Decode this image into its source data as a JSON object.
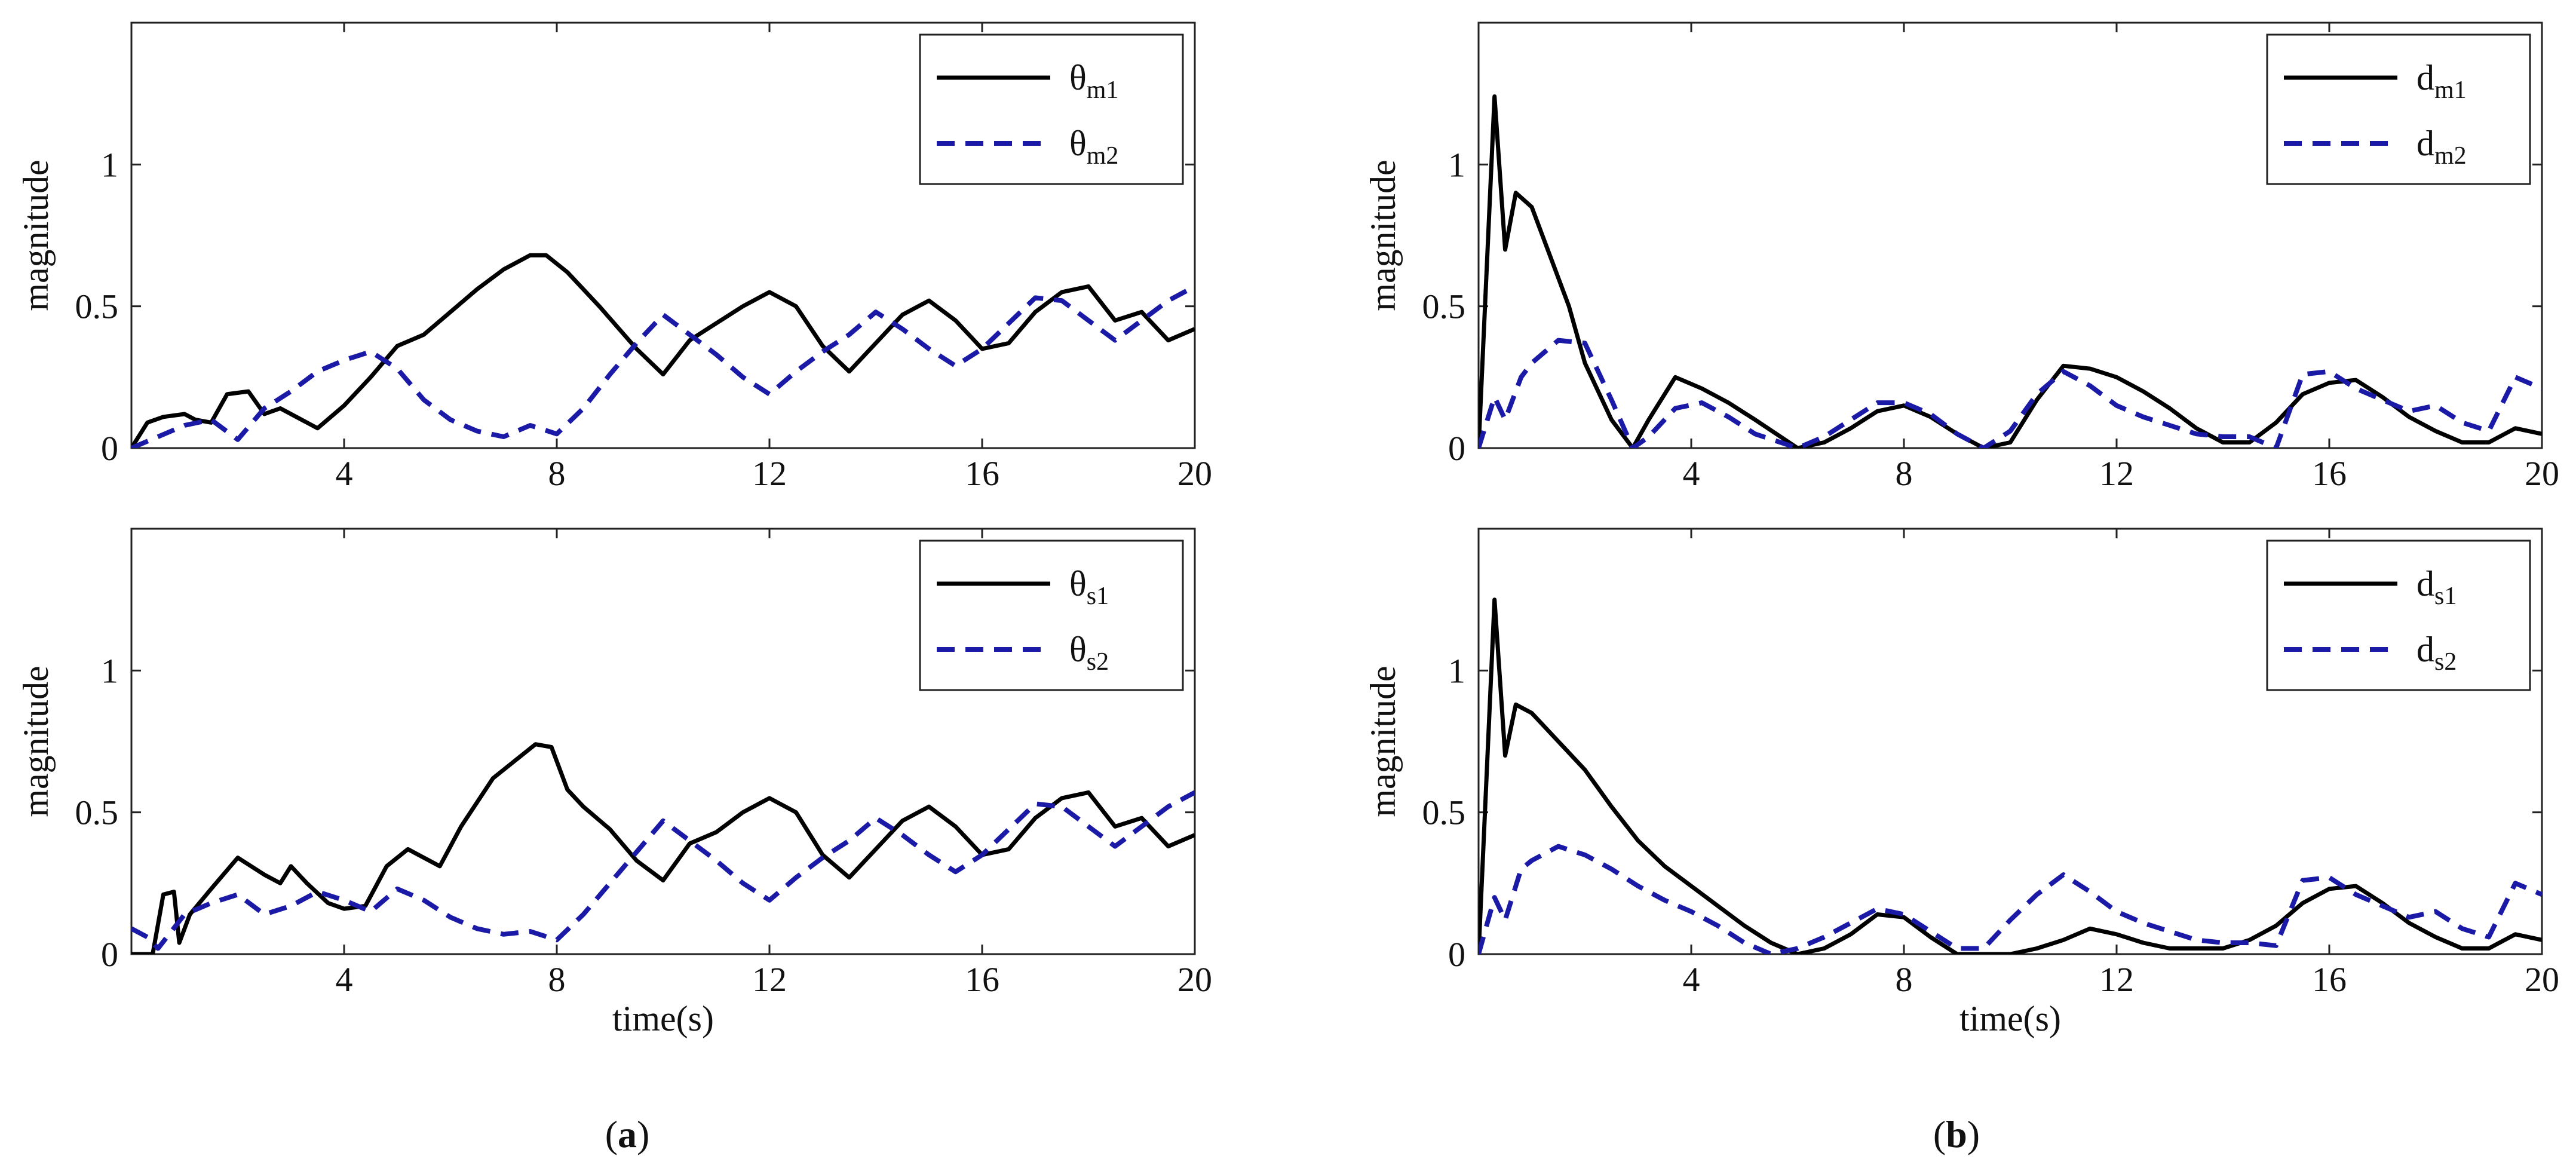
{
  "colors": {
    "black_series": "#000000",
    "blue_series": "#1a1aa6",
    "axes": "#222222",
    "background": "#ffffff"
  },
  "panel_captions": [
    {
      "open": "(",
      "letter": "a",
      "close": ")"
    },
    {
      "open": "(",
      "letter": "b",
      "close": ")"
    }
  ],
  "chart_data": [
    {
      "type": "line",
      "panel": "a-top",
      "title": "",
      "xlabel": "",
      "ylabel": "magnitude",
      "xlim": [
        0,
        20
      ],
      "ylim": [
        0,
        1.5
      ],
      "xticks": [
        "4",
        "8",
        "12",
        "16",
        "20"
      ],
      "yticks": [
        "0",
        "0.5",
        "1"
      ],
      "legend_position": "top-right",
      "series": [
        {
          "name": "θm1",
          "base": "θ",
          "sub": "m1",
          "style": "solid",
          "color": "#000000",
          "x": [
            0,
            0.3,
            0.6,
            1,
            1.2,
            1.5,
            1.8,
            2.2,
            2.5,
            2.8,
            3.2,
            3.5,
            4,
            4.5,
            5,
            5.5,
            6,
            6.5,
            7,
            7.5,
            7.8,
            8.2,
            8.8,
            9.5,
            10,
            10.5,
            11,
            11.5,
            12,
            12.5,
            13,
            13.5,
            14,
            14.5,
            15,
            15.5,
            16,
            16.5,
            17,
            17.5,
            18,
            18.5,
            19,
            19.5,
            20
          ],
          "y": [
            0,
            0.09,
            0.11,
            0.12,
            0.1,
            0.09,
            0.19,
            0.2,
            0.12,
            0.14,
            0.1,
            0.07,
            0.15,
            0.25,
            0.36,
            0.4,
            0.48,
            0.56,
            0.63,
            0.68,
            0.68,
            0.62,
            0.5,
            0.35,
            0.26,
            0.38,
            0.44,
            0.5,
            0.55,
            0.5,
            0.36,
            0.27,
            0.37,
            0.47,
            0.52,
            0.45,
            0.35,
            0.37,
            0.48,
            0.55,
            0.57,
            0.45,
            0.48,
            0.38,
            0.42
          ]
        },
        {
          "name": "θm2",
          "base": "θ",
          "sub": "m2",
          "style": "dashed",
          "color": "#1a1aa6",
          "x": [
            0,
            0.5,
            1,
            1.5,
            2,
            2.5,
            3,
            3.5,
            4,
            4.5,
            5,
            5.5,
            6,
            6.5,
            7,
            7.5,
            8,
            8.5,
            9,
            9.5,
            10,
            10.5,
            11,
            11.5,
            12,
            12.5,
            13,
            13.5,
            14,
            14.5,
            15,
            15.5,
            16,
            16.5,
            17,
            17.5,
            18,
            18.5,
            19,
            19.5,
            20
          ],
          "y": [
            0,
            0.04,
            0.08,
            0.1,
            0.03,
            0.14,
            0.2,
            0.27,
            0.31,
            0.34,
            0.28,
            0.17,
            0.1,
            0.06,
            0.04,
            0.08,
            0.05,
            0.14,
            0.26,
            0.37,
            0.47,
            0.4,
            0.33,
            0.25,
            0.19,
            0.27,
            0.34,
            0.4,
            0.48,
            0.42,
            0.35,
            0.29,
            0.35,
            0.44,
            0.53,
            0.52,
            0.45,
            0.38,
            0.45,
            0.52,
            0.57
          ]
        }
      ]
    },
    {
      "type": "line",
      "panel": "a-bottom",
      "title": "",
      "xlabel": "time(s)",
      "ylabel": "magnitude",
      "xlim": [
        0,
        20
      ],
      "ylim": [
        0,
        1.5
      ],
      "xticks": [
        "4",
        "8",
        "12",
        "16",
        "20"
      ],
      "yticks": [
        "0",
        "0.5",
        "1"
      ],
      "legend_position": "top-right",
      "series": [
        {
          "name": "θs1",
          "base": "θ",
          "sub": "s1",
          "style": "solid",
          "color": "#000000",
          "x": [
            0,
            0.4,
            0.6,
            0.8,
            0.9,
            1.1,
            1.5,
            2,
            2.5,
            2.8,
            3,
            3.3,
            3.7,
            4,
            4.4,
            4.8,
            5.2,
            5.8,
            6.2,
            6.8,
            7.2,
            7.6,
            7.9,
            8.2,
            8.5,
            9,
            9.5,
            10,
            10.5,
            11,
            11.5,
            12,
            12.5,
            13,
            13.5,
            14,
            14.5,
            15,
            15.5,
            16,
            16.5,
            17,
            17.5,
            18,
            18.5,
            19,
            19.5,
            20
          ],
          "y": [
            0,
            0,
            0.21,
            0.22,
            0.04,
            0.14,
            0.23,
            0.34,
            0.28,
            0.25,
            0.31,
            0.25,
            0.18,
            0.16,
            0.17,
            0.31,
            0.37,
            0.31,
            0.45,
            0.62,
            0.68,
            0.74,
            0.73,
            0.58,
            0.52,
            0.44,
            0.33,
            0.26,
            0.39,
            0.43,
            0.5,
            0.55,
            0.5,
            0.35,
            0.27,
            0.37,
            0.47,
            0.52,
            0.45,
            0.35,
            0.37,
            0.48,
            0.55,
            0.57,
            0.45,
            0.48,
            0.38,
            0.42
          ]
        },
        {
          "name": "θs2",
          "base": "θ",
          "sub": "s2",
          "style": "dashed",
          "color": "#1a1aa6",
          "x": [
            0,
            0.3,
            0.5,
            1,
            1.5,
            2,
            2.5,
            3,
            3.5,
            4,
            4.5,
            5,
            5.5,
            6,
            6.5,
            7,
            7.5,
            8,
            8.5,
            9,
            9.5,
            10,
            10.5,
            11,
            11.5,
            12,
            12.5,
            13,
            13.5,
            14,
            14.5,
            15,
            15.5,
            16,
            16.5,
            17,
            17.5,
            18,
            18.5,
            19,
            19.5,
            20
          ],
          "y": [
            0.09,
            0.06,
            0.02,
            0.14,
            0.18,
            0.21,
            0.14,
            0.17,
            0.22,
            0.19,
            0.15,
            0.23,
            0.19,
            0.13,
            0.09,
            0.07,
            0.08,
            0.05,
            0.14,
            0.25,
            0.36,
            0.47,
            0.4,
            0.33,
            0.25,
            0.19,
            0.27,
            0.34,
            0.4,
            0.48,
            0.42,
            0.35,
            0.29,
            0.35,
            0.44,
            0.53,
            0.52,
            0.45,
            0.38,
            0.45,
            0.52,
            0.57
          ]
        }
      ]
    },
    {
      "type": "line",
      "panel": "b-top",
      "title": "",
      "xlabel": "",
      "ylabel": "magnitude",
      "xlim": [
        0,
        20
      ],
      "ylim": [
        0,
        1.5
      ],
      "xticks": [
        "4",
        "8",
        "12",
        "16",
        "20"
      ],
      "yticks": [
        "0",
        "0.5",
        "1"
      ],
      "legend_position": "top-right",
      "series": [
        {
          "name": "dm1",
          "base": "d",
          "sub": "m1",
          "style": "solid",
          "color": "#000000",
          "x": [
            0,
            0.3,
            0.5,
            0.7,
            1,
            1.3,
            1.7,
            2,
            2.5,
            2.9,
            3.2,
            3.7,
            4.2,
            4.7,
            5.2,
            6,
            6.5,
            7,
            7.5,
            8,
            8.5,
            9,
            9.5,
            10,
            10.5,
            11,
            11.5,
            12,
            12.5,
            13,
            13.5,
            14,
            14.5,
            15,
            15.5,
            16,
            16.5,
            17,
            17.5,
            18,
            18.5,
            19,
            19.5,
            20
          ],
          "y": [
            0,
            1.24,
            0.7,
            0.9,
            0.85,
            0.7,
            0.5,
            0.3,
            0.1,
            0,
            0.1,
            0.25,
            0.21,
            0.16,
            0.1,
            0,
            0.02,
            0.07,
            0.13,
            0.15,
            0.11,
            0.05,
            0,
            0.02,
            0.17,
            0.29,
            0.28,
            0.25,
            0.2,
            0.14,
            0.07,
            0.02,
            0.02,
            0.09,
            0.19,
            0.23,
            0.24,
            0.18,
            0.11,
            0.06,
            0.02,
            0.02,
            0.07,
            0.05
          ]
        },
        {
          "name": "dm2",
          "base": "d",
          "sub": "m2",
          "style": "dashed",
          "color": "#1a1aa6",
          "x": [
            0,
            0.3,
            0.5,
            0.8,
            1,
            1.5,
            2,
            2.5,
            2.9,
            3.2,
            3.7,
            4.2,
            4.7,
            5.2,
            6,
            6.5,
            7,
            7.5,
            8,
            8.5,
            9,
            9.5,
            10,
            10.5,
            11,
            11.5,
            12,
            12.5,
            13,
            13.5,
            14,
            14.5,
            15,
            15.5,
            16,
            16.5,
            17,
            17.5,
            18,
            18.5,
            19,
            19.5,
            20
          ],
          "y": [
            0,
            0.18,
            0.1,
            0.25,
            0.3,
            0.38,
            0.37,
            0.17,
            0,
            0.04,
            0.14,
            0.16,
            0.11,
            0.05,
            0,
            0.04,
            0.1,
            0.16,
            0.16,
            0.12,
            0.05,
            0,
            0.06,
            0.19,
            0.27,
            0.22,
            0.15,
            0.11,
            0.08,
            0.05,
            0.04,
            0.04,
            0,
            0.26,
            0.27,
            0.21,
            0.17,
            0.13,
            0.15,
            0.09,
            0.06,
            0.25,
            0.21
          ]
        }
      ]
    },
    {
      "type": "line",
      "panel": "b-bottom",
      "title": "",
      "xlabel": "time(s)",
      "ylabel": "magnitude",
      "xlim": [
        0,
        20
      ],
      "ylim": [
        0,
        1.5
      ],
      "xticks": [
        "4",
        "8",
        "12",
        "16",
        "20"
      ],
      "yticks": [
        "0",
        "0.5",
        "1"
      ],
      "legend_position": "top-right",
      "series": [
        {
          "name": "ds1",
          "base": "d",
          "sub": "s1",
          "style": "solid",
          "color": "#000000",
          "x": [
            0,
            0.3,
            0.5,
            0.7,
            1,
            1.5,
            2,
            2.5,
            3,
            3.5,
            4,
            4.5,
            5,
            5.5,
            6,
            6.5,
            7,
            7.5,
            8,
            8.5,
            9,
            9.5,
            10,
            10.5,
            11,
            11.5,
            12,
            12.5,
            13,
            13.5,
            14,
            14.5,
            15,
            15.5,
            16,
            16.5,
            17,
            17.5,
            18,
            18.5,
            19,
            19.5,
            20
          ],
          "y": [
            0,
            1.25,
            0.7,
            0.88,
            0.85,
            0.75,
            0.65,
            0.52,
            0.4,
            0.31,
            0.24,
            0.17,
            0.1,
            0.04,
            0,
            0.02,
            0.07,
            0.14,
            0.13,
            0.06,
            0,
            0,
            0,
            0.02,
            0.05,
            0.09,
            0.07,
            0.04,
            0.02,
            0.02,
            0.02,
            0.05,
            0.1,
            0.18,
            0.23,
            0.24,
            0.18,
            0.11,
            0.06,
            0.02,
            0.02,
            0.07,
            0.05
          ]
        },
        {
          "name": "ds2",
          "base": "d",
          "sub": "s2",
          "style": "dashed",
          "color": "#1a1aa6",
          "x": [
            0,
            0.3,
            0.5,
            0.8,
            1,
            1.5,
            2,
            2.5,
            3,
            3.5,
            4,
            4.5,
            5,
            5.5,
            6,
            6.5,
            7,
            7.5,
            8,
            8.5,
            9,
            9.5,
            10,
            10.5,
            11,
            11.5,
            12,
            12.5,
            13,
            13.5,
            14,
            14.5,
            15,
            15.5,
            16,
            16.5,
            17,
            17.5,
            18,
            18.5,
            19,
            19.5,
            20
          ],
          "y": [
            0,
            0.2,
            0.12,
            0.3,
            0.33,
            0.38,
            0.35,
            0.3,
            0.24,
            0.19,
            0.15,
            0.1,
            0.04,
            0,
            0.02,
            0.06,
            0.11,
            0.16,
            0.14,
            0.08,
            0.02,
            0.02,
            0.12,
            0.21,
            0.28,
            0.22,
            0.15,
            0.11,
            0.08,
            0.05,
            0.04,
            0.04,
            0.03,
            0.26,
            0.27,
            0.21,
            0.17,
            0.13,
            0.15,
            0.09,
            0.06,
            0.25,
            0.21
          ]
        }
      ]
    }
  ]
}
